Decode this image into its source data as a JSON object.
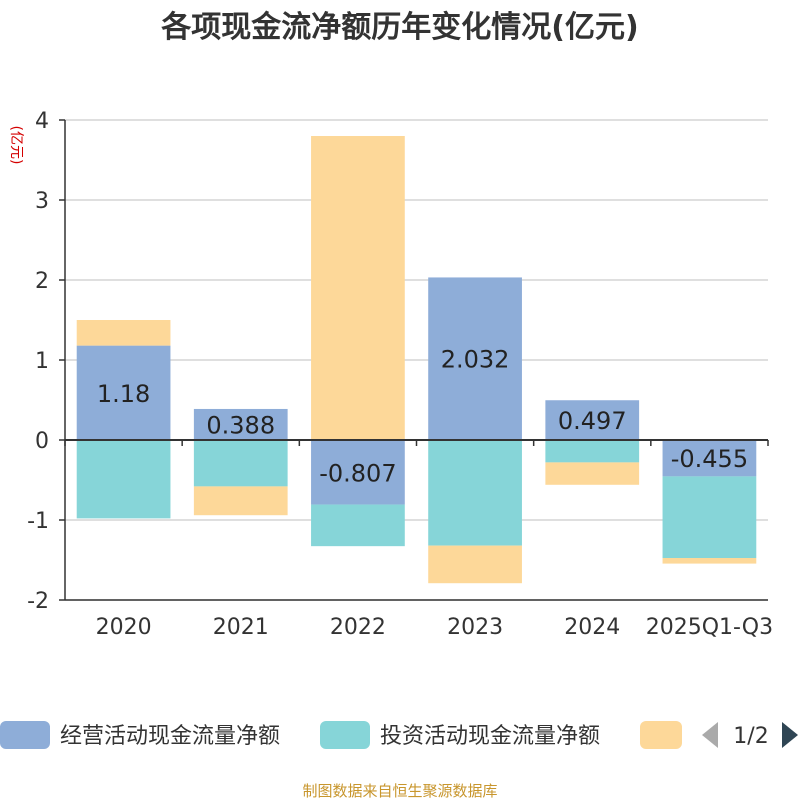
{
  "chart_data": {
    "type": "bar",
    "title": "各项现金流净额历年变化情况(亿元)",
    "ylabel": "(亿元)",
    "xlabel": "",
    "ylim": [
      -2,
      4
    ],
    "yticks": [
      -2,
      -1,
      0,
      1,
      2,
      3,
      4
    ],
    "categories": [
      "2020",
      "2021",
      "2022",
      "2023",
      "2024",
      "2025Q1-Q3"
    ],
    "series": [
      {
        "name": "经营活动现金流量净额",
        "color": "#8eadd8",
        "values": [
          1.18,
          0.388,
          -0.807,
          2.032,
          0.497,
          -0.455
        ]
      },
      {
        "name": "投资活动现金流量净额",
        "color": "#86d5d8",
        "values": [
          -0.98,
          -0.58,
          -0.52,
          -1.32,
          -0.28,
          -1.02
        ]
      },
      {
        "name": "",
        "color": "#fdd899",
        "values": [
          0.32,
          -0.36,
          3.8,
          -0.47,
          -0.28,
          -0.07
        ]
      }
    ],
    "data_labels": [
      "1.18",
      "0.388",
      "-0.807",
      "2.032",
      "0.497",
      "-0.455"
    ],
    "grid": true
  },
  "legend": {
    "pager": "1/2"
  },
  "source": "制图数据来自恒生聚源数据库"
}
